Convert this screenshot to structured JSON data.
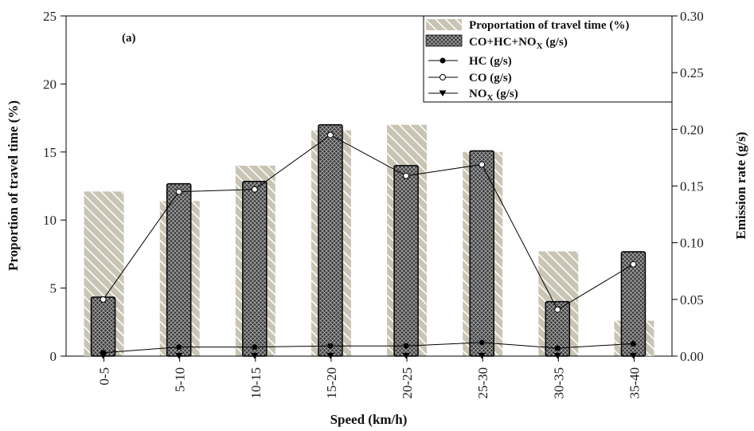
{
  "chart_data": {
    "type": "bar",
    "panel_label": "(a)",
    "categories": [
      "0-5",
      "5-10",
      "10-15",
      "15-20",
      "20-25",
      "25-30",
      "30-35",
      "35-40"
    ],
    "xlabel": "Speed (km/h)",
    "ylabel_left": "Proportion of travel time (%)",
    "ylabel_right": "Emission rate (g/s)",
    "ylim_left": [
      0,
      25
    ],
    "ylim_right": [
      0,
      0.3
    ],
    "yticks_left": [
      "0",
      "5",
      "10",
      "15",
      "20",
      "25"
    ],
    "yticks_right": [
      "0.00",
      "0.05",
      "0.10",
      "0.15",
      "0.20",
      "0.25",
      "0.30"
    ],
    "grid": false,
    "legend_position": "top-right",
    "colors": {
      "hatch_bar": "#c9c5b5",
      "hatch_line": "#ffffff",
      "emission_bar": "#333333",
      "line": "#000000"
    },
    "series": [
      {
        "name": "Proportation of travel time (%)",
        "kind": "bar",
        "axis": "left",
        "values": [
          12.1,
          11.4,
          14.0,
          16.6,
          17.0,
          15.0,
          7.7,
          2.6
        ]
      },
      {
        "name": "CO+HC+NOX (g/s)",
        "kind": "bar",
        "axis": "right",
        "values": [
          0.052,
          0.152,
          0.154,
          0.204,
          0.168,
          0.181,
          0.048,
          0.092
        ]
      },
      {
        "name": "HC (g/s)",
        "kind": "line",
        "marker": "filled-circle",
        "axis": "right",
        "values": [
          0.003,
          0.008,
          0.008,
          0.009,
          0.009,
          0.012,
          0.007,
          0.011
        ]
      },
      {
        "name": "CO (g/s)",
        "kind": "line",
        "marker": "open-circle",
        "axis": "right",
        "values": [
          0.05,
          0.145,
          0.147,
          0.195,
          0.159,
          0.169,
          0.041,
          0.081
        ]
      },
      {
        "name": "NOX (g/s)",
        "kind": "line",
        "marker": "filled-triangle-down",
        "axis": "right",
        "values": [
          0.0,
          0.0,
          0.0,
          0.0,
          0.0,
          0.0,
          0.0,
          0.0
        ]
      }
    ]
  }
}
